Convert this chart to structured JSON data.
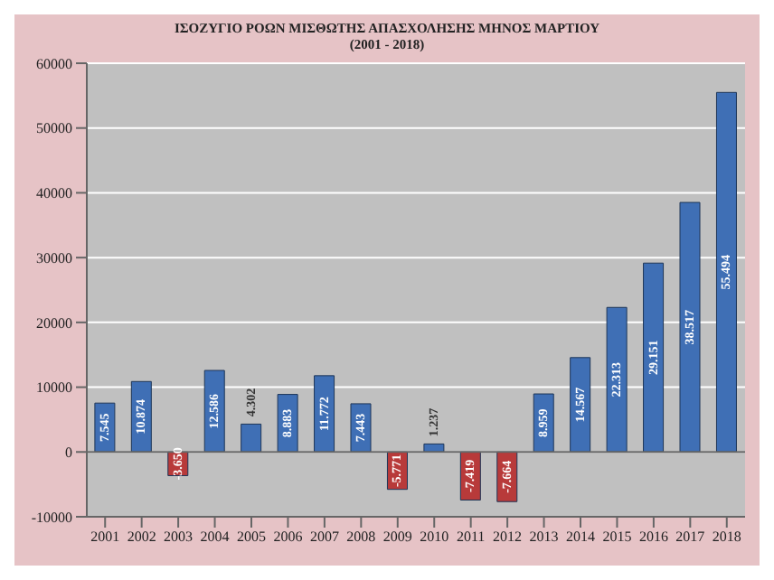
{
  "chart_data": {
    "type": "bar",
    "title": "ΙΣΟΖΥΓΙΟ ΡΟΩΝ ΜΙΣΘΩΤΗΣ ΑΠΑΣΧΟΛΗΣΗΣ ΜΗΝΟΣ ΜΑΡΤΙΟΥ",
    "subtitle": "(2001 - 2018)",
    "categories": [
      "2001",
      "2002",
      "2003",
      "2004",
      "2005",
      "2006",
      "2007",
      "2008",
      "2009",
      "2010",
      "2011",
      "2012",
      "2013",
      "2014",
      "2015",
      "2016",
      "2017",
      "2018"
    ],
    "values": [
      7545,
      10874,
      -3650,
      12586,
      4302,
      8883,
      11772,
      7443,
      -5771,
      1237,
      -7419,
      -7664,
      8959,
      14567,
      22313,
      29151,
      38517,
      55494
    ],
    "value_labels": [
      "7.545",
      "10.874",
      "-3.650",
      "12.586",
      "4.302",
      "8.883",
      "11.772",
      "7.443",
      "-5.771",
      "1.237",
      "-7.419",
      "-7.664",
      "8.959",
      "14.567",
      "22.313",
      "29.151",
      "38.517",
      "55.494"
    ],
    "colors": [
      "#3f6fb5",
      "#3f6fb5",
      "#b83a3a",
      "#3f6fb5",
      "#3f6fb5",
      "#3f6fb5",
      "#3f6fb5",
      "#3f6fb5",
      "#b83a3a",
      "#3f6fb5",
      "#b83a3a",
      "#b83a3a",
      "#3f6fb5",
      "#3f6fb5",
      "#3f6fb5",
      "#3f6fb5",
      "#3f6fb5",
      "#3f6fb5"
    ],
    "ylim": [
      -10000,
      60000
    ],
    "yticks": [
      -10000,
      0,
      10000,
      20000,
      30000,
      40000,
      50000,
      60000
    ],
    "grid": "y"
  }
}
